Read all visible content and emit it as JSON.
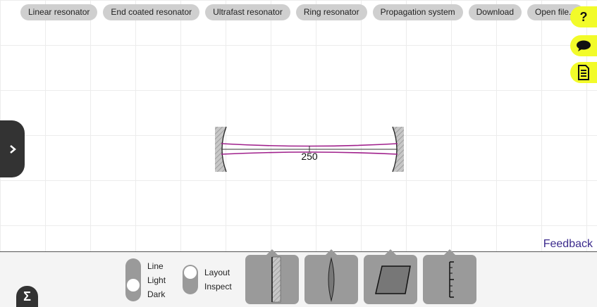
{
  "presets": [
    {
      "label": "Linear resonator"
    },
    {
      "label": "End coated resonator"
    },
    {
      "label": "Ultrafast resonator"
    },
    {
      "label": "Ring resonator"
    },
    {
      "label": "Propagation system"
    },
    {
      "label": "Download"
    },
    {
      "label": "Open file..."
    }
  ],
  "side_tabs": {
    "help_label": "?"
  },
  "scene": {
    "distance_label": "250"
  },
  "feedback_label": "Feedback",
  "bottom": {
    "sigma_label": "Σ",
    "theme_toggle": {
      "options": [
        "Line",
        "Light",
        "Dark"
      ],
      "selected": "Light"
    },
    "mode_toggle": {
      "options": [
        "Layout",
        "Inspect"
      ],
      "selected": "Layout"
    }
  },
  "icons": {
    "drawer": "chevron-right-icon",
    "chat": "speech-bubble-icon",
    "notes": "document-icon"
  },
  "colors": {
    "accent_yellow": "#f2fb2a",
    "beam": "#a0208c",
    "feedback": "#3b2a8c",
    "panel": "#f4f4f4",
    "tool": "#9a9a9a"
  }
}
